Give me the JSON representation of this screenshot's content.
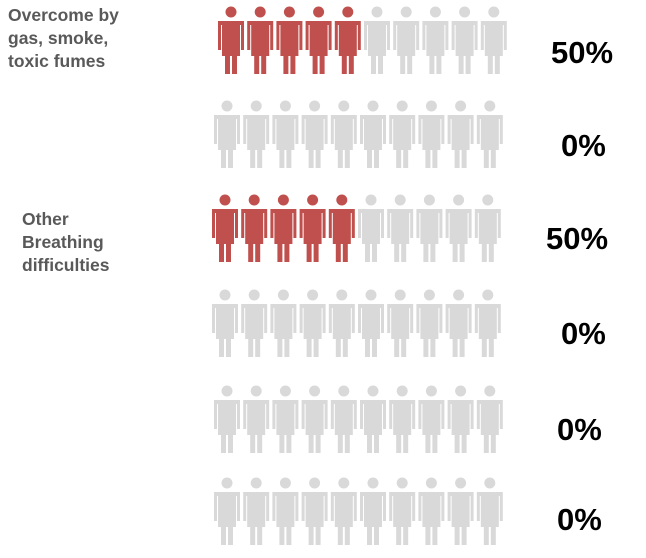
{
  "chart_data": {
    "type": "pictogram",
    "icons_per_row": 10,
    "colors": {
      "filled": "#c0504d",
      "empty": "#d9d9d9"
    },
    "icon_name": "person-icon",
    "rows": [
      {
        "label": "Overcome by\ngas, smoke,\ntoxic fumes",
        "value": 50,
        "value_label": "50%"
      },
      {
        "label": "",
        "value": 0,
        "value_label": "0%"
      },
      {
        "label": "Other\nBreathing\ndifficulties",
        "value": 50,
        "value_label": "50%"
      },
      {
        "label": "",
        "value": 0,
        "value_label": "0%"
      },
      {
        "label": "",
        "value": 0,
        "value_label": "0%"
      },
      {
        "label": "",
        "value": 0,
        "value_label": "0%"
      }
    ]
  }
}
